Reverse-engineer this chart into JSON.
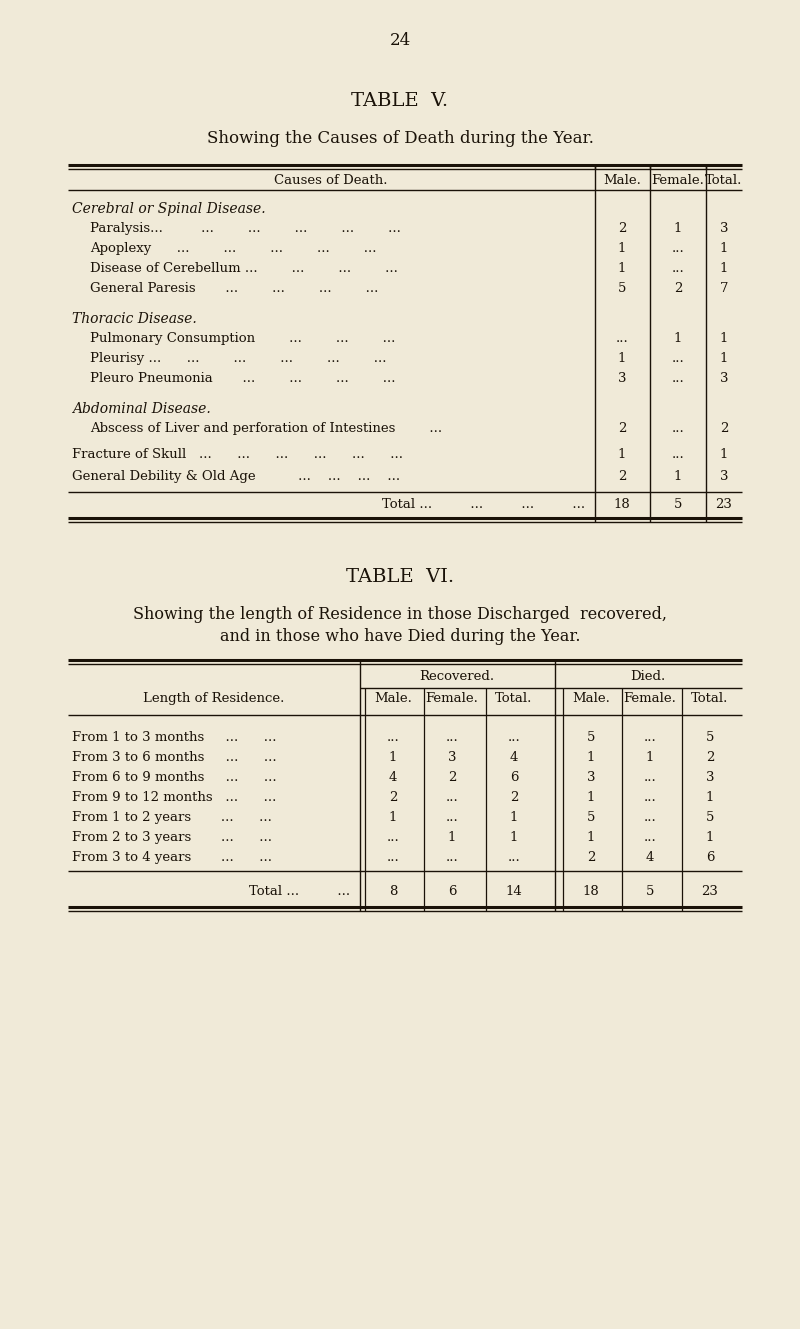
{
  "page_number": "24",
  "bg_color": "#f0ead8",
  "table5": {
    "title": "TABLE  V.",
    "subtitle": "Showing the Causes of Death during the Year.",
    "col_headers": [
      "Causes of Death.",
      "Male.",
      "Female.",
      "Total."
    ]
  },
  "table6": {
    "title": "TABLE  VI.",
    "subtitle1": "Showing the length of Residence in those Discharged  recovered,",
    "subtitle2": "and in those who have Died during the Year.",
    "col_header_recovered": "Recovered.",
    "col_header_died": "Died.",
    "sub_headers": [
      "Male.",
      "Female.",
      "Total.",
      "Male.",
      "Female.",
      "Total."
    ]
  }
}
